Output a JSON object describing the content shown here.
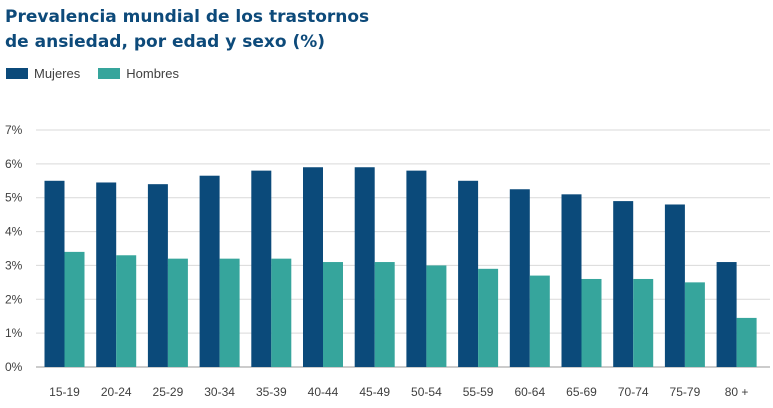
{
  "chart_data": {
    "type": "bar",
    "title_lines": [
      "Prevalencia mundial de los trastornos",
      "de ansiedad, por edad y sexo (%)"
    ],
    "categories": [
      "15-19",
      "20-24",
      "25-29",
      "30-34",
      "35-39",
      "40-44",
      "45-49",
      "50-54",
      "55-59",
      "60-64",
      "65-69",
      "70-74",
      "75-79",
      "80 +"
    ],
    "series": [
      {
        "name": "Mujeres",
        "color": "#0b4a7a",
        "values": [
          5.5,
          5.45,
          5.4,
          5.65,
          5.8,
          5.9,
          5.9,
          5.8,
          5.5,
          5.25,
          5.1,
          4.9,
          4.8,
          3.1
        ]
      },
      {
        "name": "Hombres",
        "color": "#36a59c",
        "values": [
          3.4,
          3.3,
          3.2,
          3.2,
          3.2,
          3.1,
          3.1,
          3.0,
          2.9,
          2.7,
          2.6,
          2.6,
          2.5,
          1.45
        ]
      }
    ],
    "y_ticks": [
      "0%",
      "1%",
      "2%",
      "3%",
      "4%",
      "5%",
      "6%",
      "7%"
    ],
    "ylim": [
      0,
      7
    ],
    "grid": true,
    "legend_position": "top-left"
  }
}
